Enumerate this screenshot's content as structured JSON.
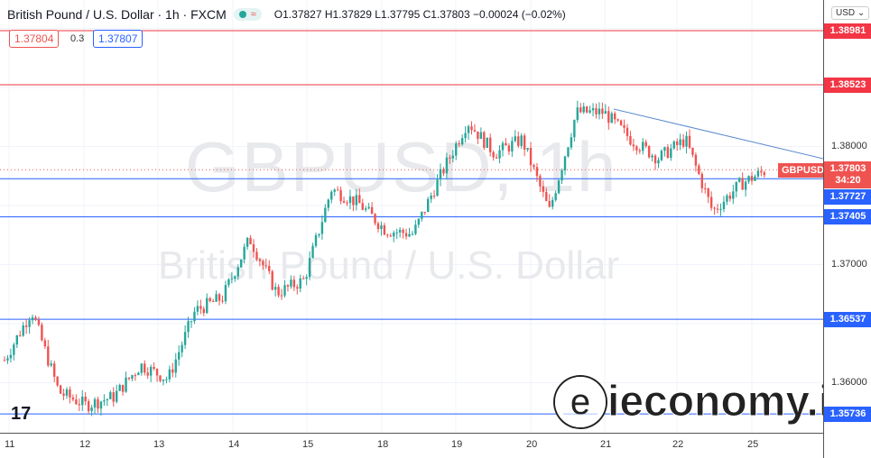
{
  "header": {
    "title": "British Pound / U.S. Dollar · 1h · FXCM",
    "ohlc": "O1.37827 H1.37829 L1.37795 C1.37803 −0.00024 (−0.02%)",
    "market_icon": "≈"
  },
  "bid": "1.37804",
  "spread": "0.3",
  "ask": "1.37807",
  "currency_select": "USD",
  "watermark": {
    "symbol": "GBPUSD, 1h",
    "name": "British Pound / U.S. Dollar"
  },
  "price_axis": {
    "ticks": [
      "1.38000",
      "1.37000",
      "1.36000"
    ]
  },
  "current": {
    "symbol": "GBPUSD",
    "price": "1.37803",
    "countdown": "34:20"
  },
  "levels": [
    {
      "price": "1.38981",
      "color": "#f23645"
    },
    {
      "price": "1.38523",
      "color": "#f23645"
    },
    {
      "price": "1.37727",
      "color": "#2962ff"
    },
    {
      "price": "1.37405",
      "color": "#2962ff"
    },
    {
      "price": "1.36537",
      "color": "#2962ff"
    },
    {
      "price": "1.35736",
      "color": "#2962ff"
    }
  ],
  "time_axis": [
    "11",
    "12",
    "13",
    "14",
    "15",
    "18",
    "19",
    "20",
    "21",
    "22",
    "25"
  ],
  "logo": "ieconomy.io",
  "colors": {
    "up": "#26a69a",
    "down": "#ef5350",
    "trendline": "#5b8bd0"
  },
  "chart_data": {
    "type": "candlestick",
    "interval": "1h",
    "path": [
      [
        "11",
        1.3619
      ],
      [
        "11",
        1.3661
      ],
      [
        "12",
        1.3592
      ],
      [
        "12",
        1.3581
      ],
      [
        "13",
        1.3588
      ],
      [
        "13",
        1.3615
      ],
      [
        "13",
        1.3603
      ],
      [
        "14",
        1.3661
      ],
      [
        "14",
        1.3672
      ],
      [
        "14",
        1.3722
      ],
      [
        "15",
        1.3676
      ],
      [
        "15",
        1.3687
      ],
      [
        "15",
        1.3764
      ],
      [
        "18",
        1.3752
      ],
      [
        "18",
        1.3729
      ],
      [
        "18",
        1.3726
      ],
      [
        "19",
        1.3775
      ],
      [
        "19",
        1.3821
      ],
      [
        "20",
        1.3794
      ],
      [
        "20",
        1.3806
      ],
      [
        "20",
        1.3745
      ],
      [
        "21",
        1.3829
      ],
      [
        "21",
        1.3829
      ],
      [
        "21",
        1.3806
      ],
      [
        "22",
        1.379
      ],
      [
        "22",
        1.3806
      ],
      [
        "22",
        1.3745
      ],
      [
        "25",
        1.3768
      ],
      [
        "25",
        1.37803
      ]
    ]
  }
}
